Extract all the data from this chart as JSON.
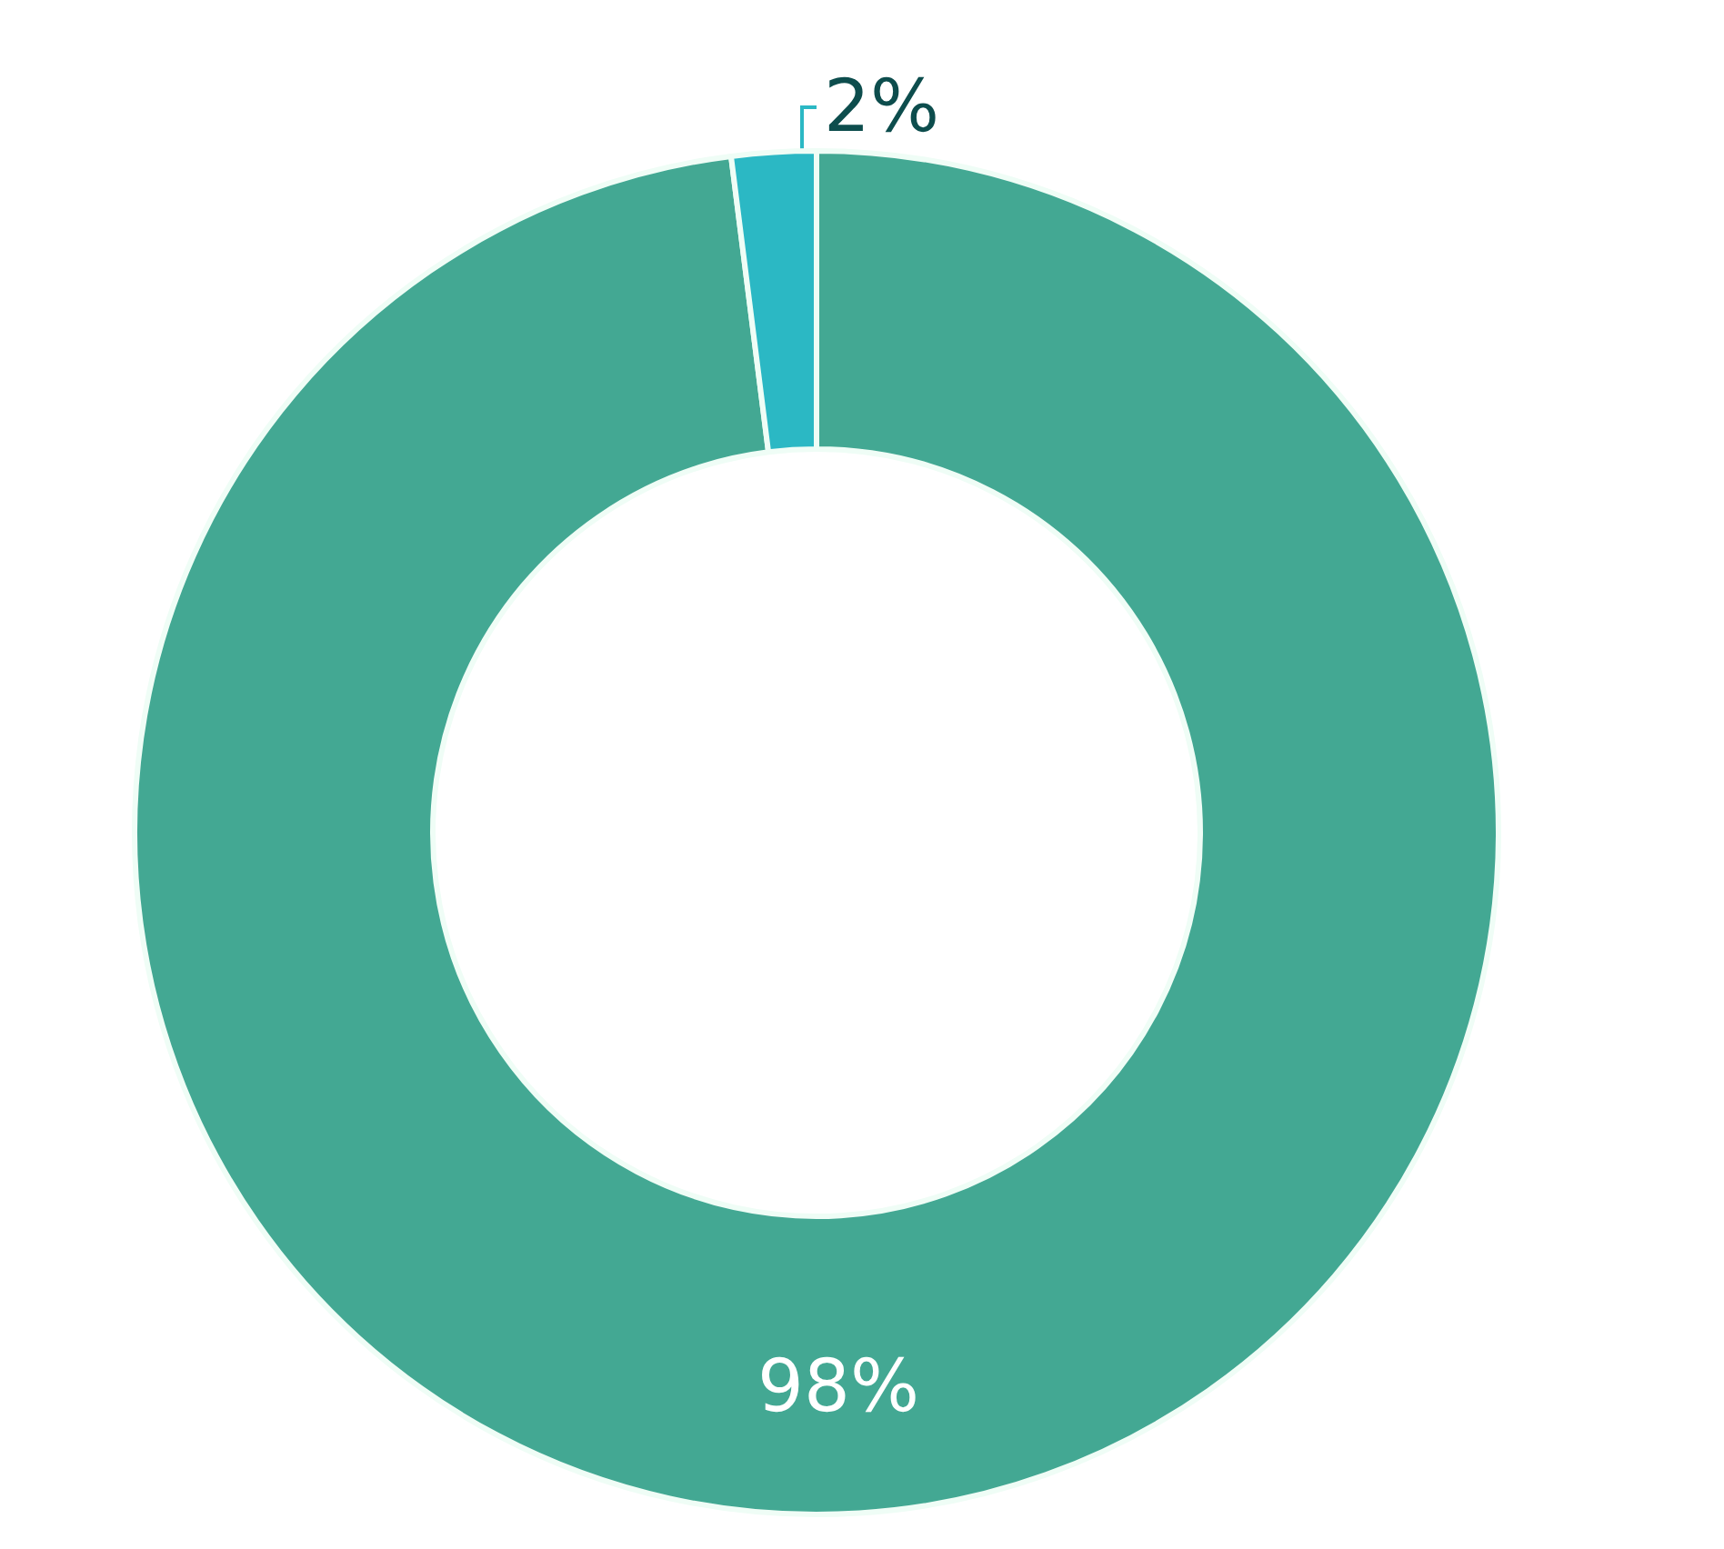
{
  "chart_data": {
    "type": "donut",
    "categories": [
      null,
      null
    ],
    "values": [
      98,
      2
    ],
    "colors": [
      "#43a893",
      "#2bb8c4"
    ],
    "value_labels": [
      "98%",
      "2%"
    ]
  }
}
